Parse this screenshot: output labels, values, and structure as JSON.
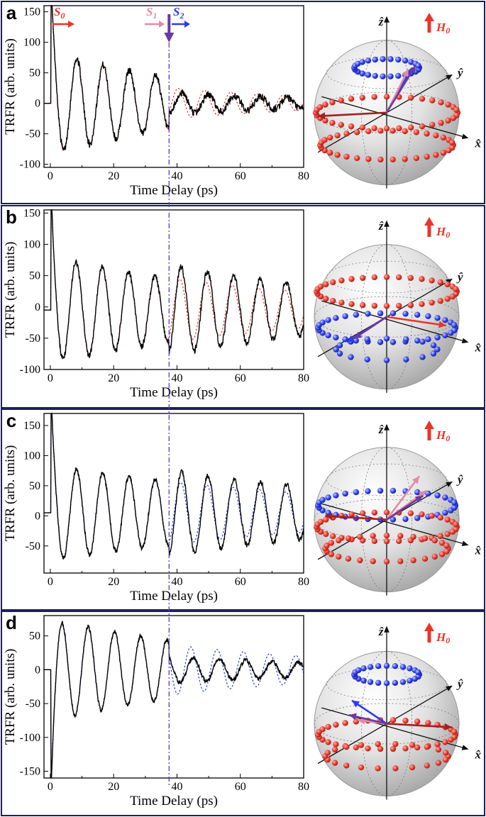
{
  "colors": {
    "measured": "#000000",
    "fit_red": "#e8362a",
    "fit_blue": "#2a3cf0",
    "marker_line": "#5a3fc4",
    "s0": "#e8362a",
    "s1": "#e58aa3",
    "s2": "#2a3cf0",
    "s_arrow_down": "#6a3aa0",
    "h0": "#e8362a",
    "sphere": "#d9d9d9"
  },
  "x_axis_label": "Time Delay (ps)",
  "y_axis_label": "TRFR (arb. units)",
  "marker_time_ps": 37.5,
  "state_labels": {
    "s0": "S",
    "s0_sub": "0",
    "s1": "S",
    "s1_sub": "1",
    "s2": "S",
    "s2_sub": "2"
  },
  "sphere_labels": {
    "z": "ẑ",
    "y": "ŷ",
    "x": "x̂",
    "h0": "H",
    "h0_sub": "0"
  },
  "chart_data": [
    {
      "panel_label": "a",
      "type": "line",
      "xlim": [
        -2,
        80
      ],
      "ylim": [
        -105,
        160
      ],
      "x_ticks": [
        0,
        20,
        40,
        60,
        80
      ],
      "y_ticks": [
        -100,
        -50,
        0,
        50,
        100,
        150
      ],
      "y_tick_labels": [
        "-100",
        "-50",
        "0",
        "50",
        "100",
        "150"
      ],
      "fit_color": "fit_red",
      "model": {
        "y0": 0,
        "A": 85,
        "tau": 55,
        "period": 8.3,
        "phase": 1.5,
        "spike": 150,
        "A2_ratio": 0.42,
        "fitA2_ratio": 0.6,
        "fit_phase_shift": 0.9,
        "noise": 6
      },
      "series": [
        {
          "name": "measured"
        },
        {
          "name": "fit"
        }
      ]
    },
    {
      "panel_label": "b",
      "type": "line",
      "xlim": [
        -2,
        80
      ],
      "ylim": [
        -100,
        155
      ],
      "x_ticks": [
        0,
        20,
        40,
        60,
        80
      ],
      "y_ticks": [
        -100,
        -50,
        0,
        50,
        100,
        150
      ],
      "y_tick_labels": [
        "-100",
        "-50",
        "0",
        "50",
        "100",
        "150"
      ],
      "fit_color": "fit_red",
      "model": {
        "y0": -5,
        "A": 85,
        "tau": 75,
        "period": 8.3,
        "phase": 1.7,
        "spike": 150,
        "A2_ratio": 1.4,
        "fitA2_ratio": 1.0,
        "fit_phase_shift": 0.3,
        "noise": 5
      },
      "series": [
        {
          "name": "measured"
        },
        {
          "name": "fit"
        }
      ]
    },
    {
      "panel_label": "c",
      "type": "line",
      "xlim": [
        -2,
        80
      ],
      "ylim": [
        -95,
        170
      ],
      "x_ticks": [
        0,
        20,
        40,
        60,
        80
      ],
      "y_ticks": [
        -50,
        0,
        50,
        100,
        150
      ],
      "y_tick_labels": [
        "-50",
        "0",
        "50",
        "100",
        "150"
      ],
      "fit_color": "fit_blue",
      "model": {
        "y0": 5,
        "A": 80,
        "tau": 90,
        "period": 8.3,
        "phase": 1.6,
        "spike": 160,
        "A2_ratio": 1.35,
        "fitA2_ratio": 1.0,
        "fit_phase_shift": 0.2,
        "noise": 4
      },
      "series": [
        {
          "name": "measured"
        },
        {
          "name": "fit"
        }
      ]
    },
    {
      "panel_label": "d",
      "type": "line",
      "xlim": [
        -2,
        80
      ],
      "ylim": [
        -160,
        80
      ],
      "x_ticks": [
        0,
        20,
        40,
        60,
        80
      ],
      "y_ticks": [
        -150,
        -100,
        -50,
        0,
        50
      ],
      "y_tick_labels": [
        "-150",
        "-100",
        "-50",
        "0",
        "50"
      ],
      "fit_color": "fit_blue",
      "model": {
        "y0": 0,
        "A": 75,
        "tau": 70,
        "period": 8.3,
        "phase": -1.2,
        "spike": -155,
        "A2_ratio": 0.45,
        "fitA2_ratio": 0.85,
        "fit_phase_shift": 0.6,
        "noise": 3
      },
      "series": [
        {
          "name": "measured"
        },
        {
          "name": "fit"
        }
      ]
    }
  ]
}
